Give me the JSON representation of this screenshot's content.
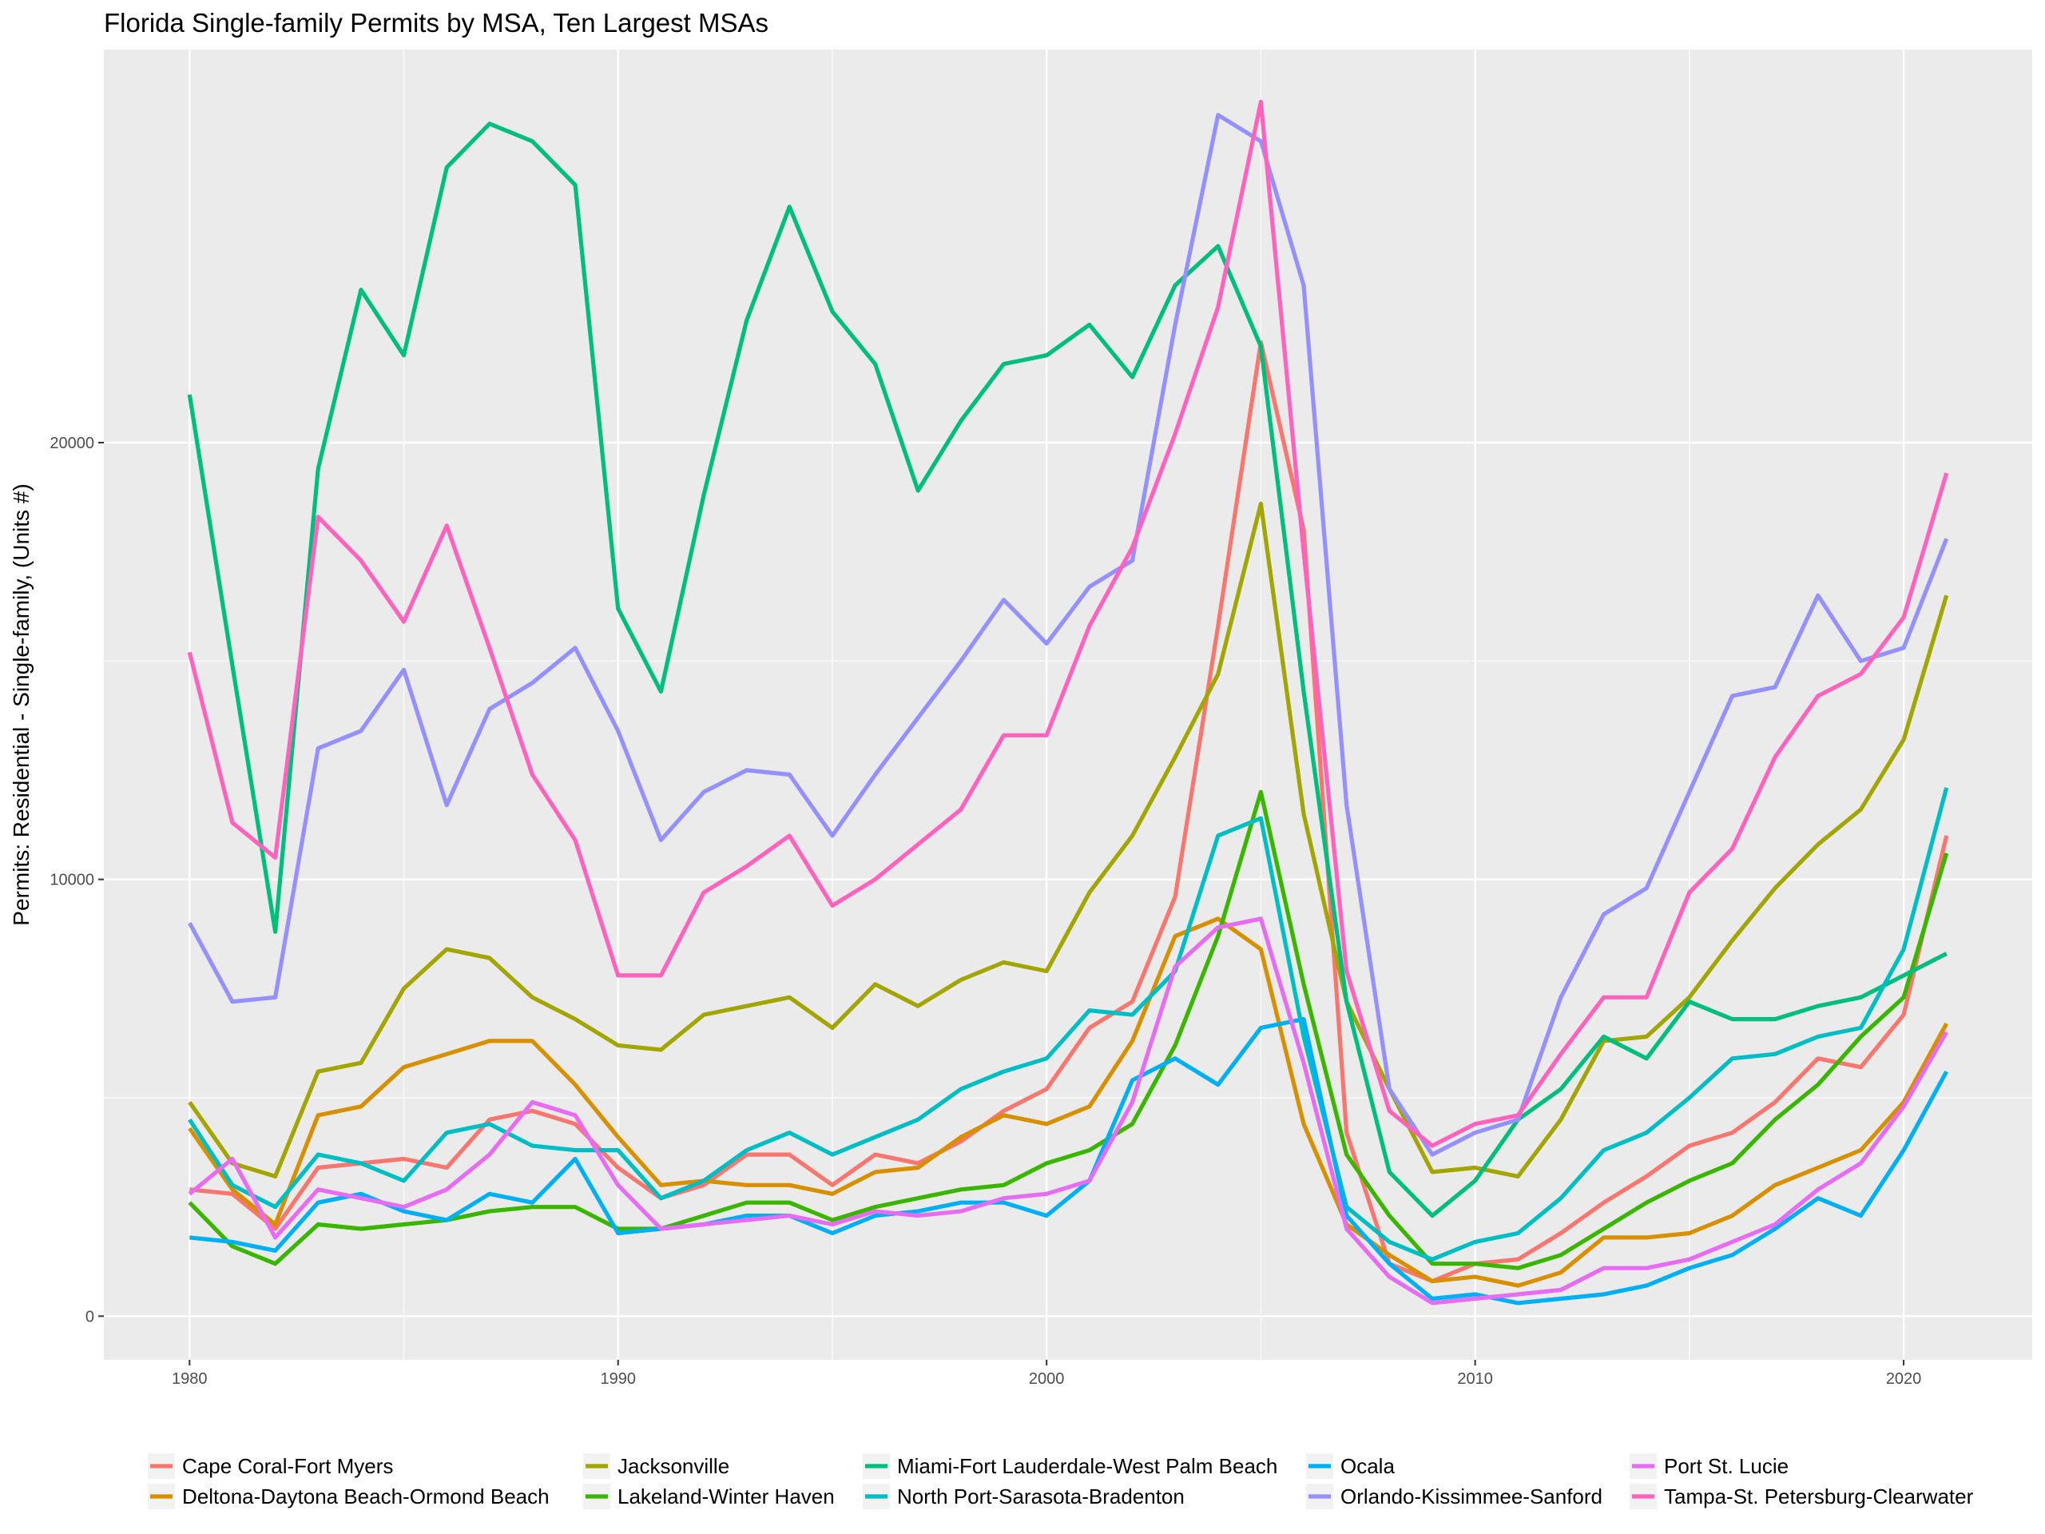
{
  "chart_data": {
    "type": "line",
    "title": "Florida Single-family Permits by MSA, Ten Largest MSAs",
    "xlabel": "",
    "ylabel": "Permits: Residential - Single-family, (Units #)",
    "xlim": [
      1978,
      2023
    ],
    "ylim": [
      -1000,
      29000
    ],
    "x_ticks": [
      1980,
      1990,
      2000,
      2010,
      2020
    ],
    "y_ticks": [
      0,
      10000,
      20000
    ],
    "grid": true,
    "legend_position": "bottom",
    "x": [
      1980,
      1981,
      1982,
      1983,
      1984,
      1985,
      1986,
      1987,
      1988,
      1989,
      1990,
      1991,
      1992,
      1993,
      1994,
      1995,
      1996,
      1997,
      1998,
      1999,
      2000,
      2001,
      2002,
      2003,
      2004,
      2005,
      2006,
      2007,
      2008,
      2009,
      2010,
      2011,
      2012,
      2013,
      2014,
      2015,
      2016,
      2017,
      2018,
      2019,
      2020,
      2021
    ],
    "series": [
      {
        "name": "Cape Coral-Fort Myers",
        "color": "#F8766D",
        "values": [
          2900,
          2800,
          2000,
          3400,
          3500,
          3600,
          3400,
          4500,
          4700,
          4400,
          3400,
          2700,
          3000,
          3700,
          3700,
          3000,
          3700,
          3500,
          4000,
          4700,
          5200,
          6600,
          7200,
          9600,
          15800,
          22300,
          18000,
          4200,
          1200,
          800,
          1200,
          1300,
          1900,
          2600,
          3200,
          3900,
          4200,
          4900,
          5900,
          5700,
          6900,
          11000
        ]
      },
      {
        "name": "Deltona-Daytona Beach-Ormond Beach",
        "color": "#D89000",
        "values": [
          4300,
          2900,
          2100,
          4600,
          4800,
          5700,
          6000,
          6300,
          6300,
          5300,
          4100,
          3000,
          3100,
          3000,
          3000,
          2800,
          3300,
          3400,
          4100,
          4600,
          4400,
          4800,
          6300,
          8700,
          9100,
          8400,
          4400,
          2100,
          1400,
          800,
          900,
          700,
          1000,
          1800,
          1800,
          1900,
          2300,
          3000,
          3400,
          3800,
          4900,
          6700
        ]
      },
      {
        "name": "Jacksonville",
        "color": "#A3A500",
        "values": [
          4900,
          3500,
          3200,
          5600,
          5800,
          7500,
          8400,
          8200,
          7300,
          6800,
          6200,
          6100,
          6900,
          7100,
          7300,
          6600,
          7600,
          7100,
          7700,
          8100,
          7900,
          9700,
          11000,
          12800,
          14700,
          18600,
          11500,
          7200,
          5200,
          3300,
          3400,
          3200,
          4500,
          6300,
          6400,
          7300,
          8600,
          9800,
          10800,
          11600,
          13200,
          16500
        ]
      },
      {
        "name": "Lakeland-Winter Haven",
        "color": "#39B600",
        "values": [
          2600,
          1600,
          1200,
          2100,
          2000,
          2100,
          2200,
          2400,
          2500,
          2500,
          2000,
          2000,
          2300,
          2600,
          2600,
          2200,
          2500,
          2700,
          2900,
          3000,
          3500,
          3800,
          4400,
          6200,
          8700,
          12000,
          7600,
          3700,
          2300,
          1200,
          1200,
          1100,
          1400,
          2000,
          2600,
          3100,
          3500,
          4500,
          5300,
          6400,
          7300,
          10600
        ]
      },
      {
        "name": "Miami-Fort Lauderdale-West Palm Beach",
        "color": "#00BF7D",
        "values": [
          21100,
          14900,
          8800,
          19400,
          23500,
          22000,
          26300,
          27300,
          26900,
          25900,
          16200,
          14300,
          18800,
          22800,
          25400,
          23000,
          21800,
          18900,
          20500,
          21800,
          22000,
          22700,
          21500,
          23600,
          24500,
          22200,
          14300,
          7200,
          3300,
          2300,
          3100,
          4500,
          5200,
          6400,
          5900,
          7200,
          6800,
          6800,
          7100,
          7300,
          7800,
          8300
        ]
      },
      {
        "name": "North Port-Sarasota-Bradenton",
        "color": "#00BFC4",
        "values": [
          4500,
          3000,
          2500,
          3700,
          3500,
          3100,
          4200,
          4400,
          3900,
          3800,
          3800,
          2700,
          3100,
          3800,
          4200,
          3700,
          4100,
          4500,
          5200,
          5600,
          5900,
          7000,
          6900,
          7900,
          11000,
          11400,
          6400,
          2500,
          1700,
          1300,
          1700,
          1900,
          2700,
          3800,
          4200,
          5000,
          5900,
          6000,
          6400,
          6600,
          8400,
          12100
        ]
      },
      {
        "name": "Ocala",
        "color": "#00B0F6",
        "values": [
          1800,
          1700,
          1500,
          2600,
          2800,
          2400,
          2200,
          2800,
          2600,
          3600,
          1900,
          2000,
          2100,
          2300,
          2300,
          1900,
          2300,
          2400,
          2600,
          2600,
          2300,
          3100,
          5400,
          5900,
          5300,
          6600,
          6800,
          2300,
          1200,
          400,
          500,
          300,
          400,
          500,
          700,
          1100,
          1400,
          2000,
          2700,
          2300,
          3800,
          5600
        ]
      },
      {
        "name": "Orlando-Kissimmee-Sanford",
        "color": "#9590FF",
        "values": [
          9000,
          7200,
          7300,
          13000,
          13400,
          14800,
          11700,
          13900,
          14500,
          15300,
          13400,
          10900,
          12000,
          12500,
          12400,
          11000,
          12400,
          13700,
          15000,
          16400,
          15400,
          16700,
          17300,
          22700,
          27500,
          26900,
          23600,
          11700,
          5200,
          3700,
          4200,
          4500,
          7300,
          9200,
          9800,
          12000,
          14200,
          14400,
          16500,
          15000,
          15300,
          17800
        ]
      },
      {
        "name": "Port St. Lucie",
        "color": "#E76BF3",
        "values": [
          2800,
          3600,
          1800,
          2900,
          2700,
          2500,
          2900,
          3700,
          4900,
          4600,
          3000,
          2000,
          2100,
          2200,
          2300,
          2100,
          2400,
          2300,
          2400,
          2700,
          2800,
          3100,
          4900,
          8000,
          8900,
          9100,
          5800,
          2000,
          900,
          300,
          400,
          500,
          600,
          1100,
          1100,
          1300,
          1700,
          2100,
          2900,
          3500,
          4800,
          6500
        ]
      },
      {
        "name": "Tampa-St. Petersburg-Clearwater",
        "color": "#FF62BC",
        "values": [
          15200,
          11300,
          10500,
          18300,
          17300,
          15900,
          18100,
          15300,
          12400,
          10900,
          7800,
          7800,
          9700,
          10300,
          11000,
          9400,
          10000,
          10800,
          11600,
          13300,
          13300,
          15800,
          17600,
          20200,
          23100,
          27800,
          17500,
          7900,
          4700,
          3900,
          4400,
          4600,
          6000,
          7300,
          7300,
          9700,
          10700,
          12800,
          14200,
          14700,
          16000,
          19300
        ]
      }
    ]
  }
}
